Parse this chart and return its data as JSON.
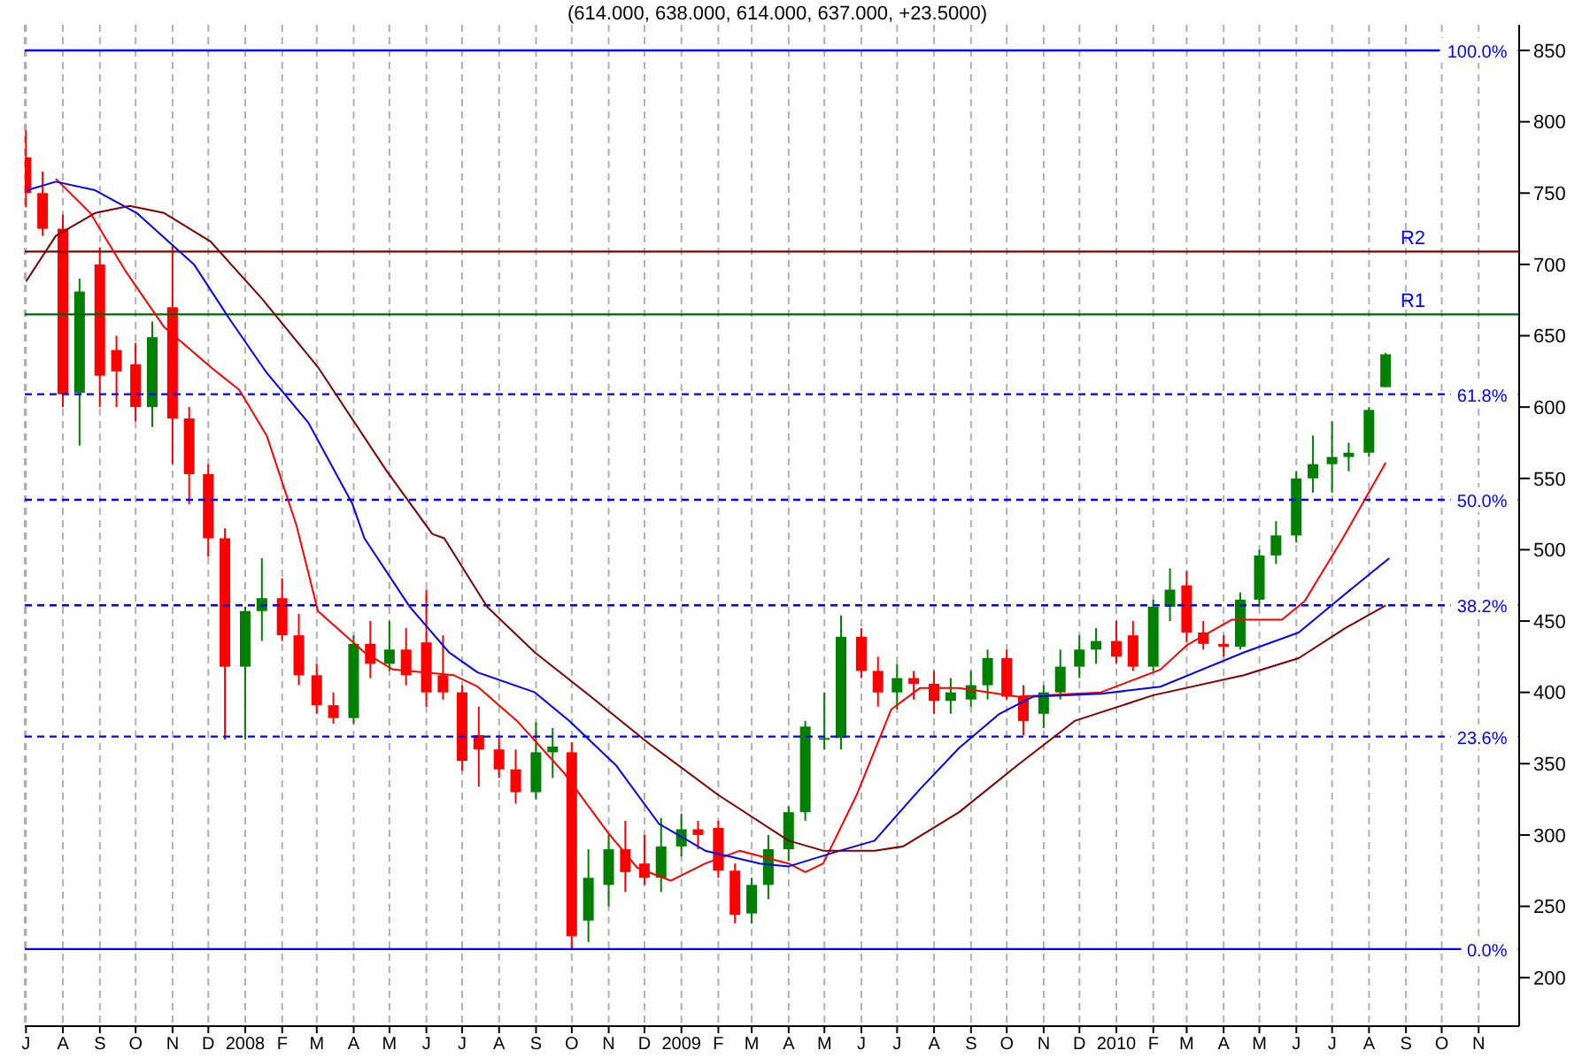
{
  "chart_data": {
    "type": "candlestick",
    "title": "(614.000, 638.000, 614.000, 637.000, +23.5000)",
    "x": [
      "2007-07-01",
      "2007-07-15",
      "2007-08-01",
      "2007-08-15",
      "2007-09-01",
      "2007-09-15",
      "2007-10-01",
      "2007-10-15",
      "2007-11-01",
      "2007-11-15",
      "2007-12-01",
      "2007-12-15",
      "2008-01-01",
      "2008-01-15",
      "2008-02-01",
      "2008-02-15",
      "2008-03-01",
      "2008-03-15",
      "2008-04-01",
      "2008-04-15",
      "2008-05-01",
      "2008-05-15",
      "2008-06-01",
      "2008-06-15",
      "2008-07-01",
      "2008-07-15",
      "2008-08-01",
      "2008-08-15",
      "2008-09-01",
      "2008-09-15",
      "2008-10-01",
      "2008-10-15",
      "2008-11-01",
      "2008-11-15",
      "2008-12-01",
      "2008-12-15",
      "2009-01-01",
      "2009-01-15",
      "2009-02-01",
      "2009-02-15",
      "2009-03-01",
      "2009-03-15",
      "2009-04-01",
      "2009-04-15",
      "2009-05-01",
      "2009-05-15",
      "2009-06-01",
      "2009-06-15",
      "2009-07-01",
      "2009-07-15",
      "2009-08-01",
      "2009-08-15",
      "2009-09-01",
      "2009-09-15",
      "2009-10-01",
      "2009-10-15",
      "2009-11-01",
      "2009-11-15",
      "2009-12-01",
      "2009-12-15",
      "2010-01-01",
      "2010-01-15",
      "2010-02-01",
      "2010-02-15",
      "2010-03-01",
      "2010-03-15",
      "2010-04-01",
      "2010-04-15",
      "2010-05-01",
      "2010-05-15",
      "2010-06-01",
      "2010-06-15",
      "2010-07-01",
      "2010-07-15",
      "2010-08-01",
      "2010-08-15"
    ],
    "ohlc": [
      [
        775,
        794,
        740,
        750
      ],
      [
        750,
        765,
        720,
        725
      ],
      [
        725,
        735,
        600,
        609
      ],
      [
        610,
        690,
        573,
        681
      ],
      [
        700,
        712,
        600,
        622
      ],
      [
        640,
        650,
        600,
        625
      ],
      [
        630,
        645,
        590,
        600
      ],
      [
        600,
        660,
        586,
        649
      ],
      [
        670,
        714,
        560,
        592
      ],
      [
        592,
        600,
        532,
        553
      ],
      [
        553,
        560,
        495,
        508
      ],
      [
        508,
        515,
        367,
        418
      ],
      [
        418,
        460,
        367,
        457
      ],
      [
        457,
        494,
        436,
        466
      ],
      [
        466,
        480,
        436,
        440
      ],
      [
        440,
        455,
        405,
        412
      ],
      [
        412,
        420,
        385,
        391
      ],
      [
        391,
        400,
        378,
        382
      ],
      [
        382,
        440,
        378,
        434
      ],
      [
        434,
        450,
        410,
        420
      ],
      [
        420,
        450,
        415,
        430
      ],
      [
        430,
        445,
        405,
        412
      ],
      [
        435,
        472,
        390,
        400
      ],
      [
        412,
        440,
        395,
        400
      ],
      [
        400,
        405,
        345,
        352
      ],
      [
        370,
        390,
        334,
        360
      ],
      [
        360,
        370,
        340,
        346
      ],
      [
        346,
        360,
        322,
        330
      ],
      [
        330,
        379,
        325,
        358
      ],
      [
        358,
        375,
        340,
        362
      ],
      [
        358,
        365,
        220,
        229
      ],
      [
        240,
        290,
        225,
        270
      ],
      [
        265,
        300,
        250,
        290
      ],
      [
        290,
        310,
        260,
        274
      ],
      [
        280,
        300,
        265,
        270
      ],
      [
        270,
        312,
        260,
        292
      ],
      [
        292,
        315,
        285,
        304
      ],
      [
        304,
        310,
        290,
        300
      ],
      [
        305,
        310,
        270,
        275
      ],
      [
        275,
        280,
        238,
        244
      ],
      [
        245,
        270,
        238,
        265
      ],
      [
        265,
        300,
        255,
        290
      ],
      [
        290,
        320,
        282,
        316
      ],
      [
        316,
        380,
        310,
        376
      ],
      [
        367,
        400,
        360,
        368
      ],
      [
        368,
        454,
        360,
        439
      ],
      [
        439,
        445,
        410,
        415
      ],
      [
        415,
        425,
        390,
        400
      ],
      [
        400,
        420,
        388,
        410
      ],
      [
        410,
        415,
        395,
        406
      ],
      [
        406,
        415,
        385,
        394
      ],
      [
        394,
        410,
        385,
        400
      ],
      [
        395,
        415,
        390,
        405
      ],
      [
        405,
        430,
        395,
        424
      ],
      [
        424,
        430,
        395,
        397
      ],
      [
        397,
        405,
        370,
        380
      ],
      [
        385,
        405,
        375,
        400
      ],
      [
        400,
        430,
        395,
        418
      ],
      [
        418,
        440,
        410,
        430
      ],
      [
        430,
        445,
        420,
        436
      ],
      [
        436,
        450,
        420,
        425
      ],
      [
        440,
        450,
        415,
        418
      ],
      [
        418,
        465,
        415,
        460
      ],
      [
        460,
        487,
        450,
        472
      ],
      [
        475,
        485,
        435,
        442
      ],
      [
        442,
        450,
        430,
        434
      ],
      [
        434,
        440,
        425,
        432
      ],
      [
        432,
        470,
        430,
        465
      ],
      [
        465,
        500,
        460,
        496
      ],
      [
        496,
        520,
        490,
        510
      ],
      [
        510,
        555,
        505,
        550
      ],
      [
        550,
        580,
        540,
        560
      ],
      [
        560,
        590,
        540,
        565
      ],
      [
        565,
        575,
        555,
        568
      ],
      [
        568,
        600,
        565,
        598
      ],
      [
        614,
        638,
        614,
        637
      ]
    ],
    "colors": [
      "#ff0000",
      "#ff0000",
      "#ff0000",
      "#008000",
      "#ff0000",
      "#ff0000",
      "#ff0000",
      "#008000",
      "#ff0000",
      "#ff0000",
      "#ff0000",
      "#ff0000",
      "#008000",
      "#008000",
      "#ff0000",
      "#ff0000",
      "#ff0000",
      "#ff0000",
      "#008000",
      "#ff0000",
      "#008000",
      "#ff0000",
      "#ff0000",
      "#ff0000",
      "#ff0000",
      "#ff0000",
      "#ff0000",
      "#ff0000",
      "#008000",
      "#008000",
      "#ff0000",
      "#008000",
      "#008000",
      "#ff0000",
      "#ff0000",
      "#008000",
      "#008000",
      "#ff0000",
      "#ff0000",
      "#ff0000",
      "#008000",
      "#008000",
      "#008000",
      "#008000",
      "#008000",
      "#008000",
      "#ff0000",
      "#ff0000",
      "#008000",
      "#ff0000",
      "#ff0000",
      "#008000",
      "#008000",
      "#008000",
      "#ff0000",
      "#ff0000",
      "#008000",
      "#008000",
      "#008000",
      "#008000",
      "#ff0000",
      "#ff0000",
      "#008000",
      "#008000",
      "#ff0000",
      "#ff0000",
      "#ff0000",
      "#008000",
      "#008000",
      "#008000",
      "#008000",
      "#008000",
      "#008000",
      "#008000",
      "#008000",
      "#008000"
    ],
    "series": [
      {
        "type": "line",
        "color": "#ff0000",
        "x": [
          "2007-07-26",
          "2007-08-24",
          "2007-09-22",
          "2007-10-25",
          "2007-12-03",
          "2007-12-27",
          "2008-01-19",
          "2008-02-13",
          "2008-03-02",
          "2008-04-10",
          "2008-05-04",
          "2008-06-24",
          "2008-07-14",
          "2008-08-16",
          "2008-09-24",
          "2008-11-01",
          "2008-11-25",
          "2008-12-23",
          "2009-01-21",
          "2009-02-19",
          "2009-04-01",
          "2009-04-15",
          "2009-04-30",
          "2009-05-28",
          "2009-06-26",
          "2009-07-20",
          "2009-08-22",
          "2009-10-10",
          "2009-11-27",
          "2009-12-19",
          "2010-02-07",
          "2010-03-01",
          "2010-04-08",
          "2010-05-20",
          "2010-06-08",
          "2010-07-10",
          "2010-08-15"
        ],
        "values": [
          760,
          736,
          696,
          656,
          628,
          612,
          580,
          517,
          457,
          428,
          416,
          412,
          404,
          380,
          344,
          301,
          277,
          268,
          280,
          289,
          280,
          274,
          280,
          328,
          388,
          403,
          403,
          397,
          399,
          400,
          416,
          433,
          451,
          451,
          464,
          508,
          561
        ]
      },
      {
        "type": "line",
        "color": "#0000ff",
        "x": [
          "2007-07-02",
          "2007-07-26",
          "2007-08-28",
          "2007-10-02",
          "2007-11-19",
          "2007-12-17",
          "2008-01-19",
          "2008-02-23",
          "2008-03-31",
          "2008-04-10",
          "2008-05-18",
          "2008-06-20",
          "2008-07-14",
          "2008-08-31",
          "2008-09-29",
          "2008-11-07",
          "2008-12-13",
          "2009-01-21",
          "2009-03-08",
          "2009-04-01",
          "2009-05-14",
          "2009-06-12",
          "2009-07-20",
          "2009-08-22",
          "2009-09-25",
          "2009-10-23",
          "2009-12-19",
          "2010-02-07",
          "2010-04-18",
          "2010-06-03",
          "2010-07-12",
          "2010-08-18"
        ],
        "values": [
          752,
          758,
          752,
          736,
          700,
          664,
          624,
          589,
          532,
          508,
          460,
          428,
          414,
          400,
          380,
          349,
          308,
          289,
          280,
          278,
          289,
          296,
          332,
          361,
          385,
          397,
          399,
          404,
          428,
          442,
          469,
          494
        ]
      },
      {
        "type": "line",
        "color": "#800000",
        "x": [
          "2007-07-01",
          "2007-07-26",
          "2007-08-28",
          "2007-09-26",
          "2007-10-25",
          "2007-12-03",
          "2008-01-15",
          "2008-03-02",
          "2008-04-28",
          "2008-06-06",
          "2008-06-16",
          "2008-07-22",
          "2008-08-31",
          "2008-10-17",
          "2008-12-05",
          "2009-02-01",
          "2009-04-01",
          "2009-04-30",
          "2009-06-12",
          "2009-07-06",
          "2009-08-22",
          "2009-10-10",
          "2009-11-27",
          "2010-02-01",
          "2010-04-18",
          "2010-06-03",
          "2010-07-12",
          "2010-08-15"
        ],
        "values": [
          688,
          720,
          736,
          741,
          736,
          716,
          676,
          628,
          556,
          511,
          508,
          460,
          428,
          397,
          364,
          328,
          296,
          289,
          289,
          292,
          316,
          349,
          380,
          398,
          412,
          424,
          445,
          461
        ]
      }
    ],
    "ref_lines": [
      {
        "axis": "y",
        "value": 850,
        "color": "#0000ff",
        "line_style": "solid"
      },
      {
        "axis": "y",
        "value": 709,
        "label": "R2",
        "color": "#800000",
        "line_style": "solid"
      },
      {
        "axis": "y",
        "value": 665,
        "label": "R1",
        "color": "#006400",
        "line_style": "solid"
      },
      {
        "axis": "y",
        "value": 609,
        "color": "#0000ff",
        "line_style": "dashed"
      },
      {
        "axis": "y",
        "value": 535,
        "color": "#0000ff",
        "line_style": "dashed"
      },
      {
        "axis": "y",
        "value": 461,
        "color": "#0000ff",
        "line_style": "dashed"
      },
      {
        "axis": "y",
        "value": 369,
        "color": "#0000ff",
        "line_style": "dashed"
      },
      {
        "axis": "y",
        "value": 220,
        "color": "#0000ff",
        "line_style": "solid"
      }
    ],
    "annotations": [
      {
        "text": "100.0%",
        "x": "2010-11-25",
        "y": 850
      },
      {
        "text": "61.8%",
        "x": "2010-11-25",
        "y": 609
      },
      {
        "text": "50.0%",
        "x": "2010-11-25",
        "y": 535
      },
      {
        "text": "38.2%",
        "x": "2010-11-25",
        "y": 461
      },
      {
        "text": "23.6%",
        "x": "2010-11-25",
        "y": 369
      },
      {
        "text": "0.0%",
        "x": "2010-11-25",
        "y": 220
      }
    ],
    "xlim": [
      "2007-06-30",
      "2010-12-05"
    ],
    "xticks": [
      {
        "value": "2007-07-01",
        "label": "J"
      },
      {
        "value": "2007-08-01",
        "label": "A"
      },
      {
        "value": "2007-09-01",
        "label": "S"
      },
      {
        "value": "2007-10-01",
        "label": "O"
      },
      {
        "value": "2007-11-01",
        "label": "N"
      },
      {
        "value": "2007-12-01",
        "label": "D"
      },
      {
        "value": "2008-01-01",
        "label": "2008"
      },
      {
        "value": "2008-02-01",
        "label": "F"
      },
      {
        "value": "2008-03-01",
        "label": "M"
      },
      {
        "value": "2008-04-01",
        "label": "A"
      },
      {
        "value": "2008-05-01",
        "label": "M"
      },
      {
        "value": "2008-06-01",
        "label": "J"
      },
      {
        "value": "2008-07-01",
        "label": "J"
      },
      {
        "value": "2008-08-01",
        "label": "A"
      },
      {
        "value": "2008-09-01",
        "label": "S"
      },
      {
        "value": "2008-10-01",
        "label": "O"
      },
      {
        "value": "2008-11-01",
        "label": "N"
      },
      {
        "value": "2008-12-01",
        "label": "D"
      },
      {
        "value": "2009-01-01",
        "label": "2009"
      },
      {
        "value": "2009-02-01",
        "label": "F"
      },
      {
        "value": "2009-03-01",
        "label": "M"
      },
      {
        "value": "2009-04-01",
        "label": "A"
      },
      {
        "value": "2009-05-01",
        "label": "M"
      },
      {
        "value": "2009-06-01",
        "label": "J"
      },
      {
        "value": "2009-07-01",
        "label": "J"
      },
      {
        "value": "2009-08-01",
        "label": "A"
      },
      {
        "value": "2009-09-01",
        "label": "S"
      },
      {
        "value": "2009-10-01",
        "label": "O"
      },
      {
        "value": "2009-11-01",
        "label": "N"
      },
      {
        "value": "2009-12-01",
        "label": "D"
      },
      {
        "value": "2010-01-01",
        "label": "2010"
      },
      {
        "value": "2010-02-01",
        "label": "F"
      },
      {
        "value": "2010-03-01",
        "label": "M"
      },
      {
        "value": "2010-04-01",
        "label": "A"
      },
      {
        "value": "2010-05-01",
        "label": "M"
      },
      {
        "value": "2010-06-01",
        "label": "J"
      },
      {
        "value": "2010-07-01",
        "label": "J"
      },
      {
        "value": "2010-08-01",
        "label": "A"
      },
      {
        "value": "2010-09-01",
        "label": "S"
      },
      {
        "value": "2010-10-01",
        "label": "O"
      },
      {
        "value": "2010-11-01",
        "label": "N"
      }
    ],
    "ylim": [
      166,
      868
    ],
    "yticks": [
      200,
      250,
      300,
      350,
      400,
      450,
      500,
      550,
      600,
      650,
      700,
      750,
      800,
      850
    ],
    "grid": "x"
  }
}
